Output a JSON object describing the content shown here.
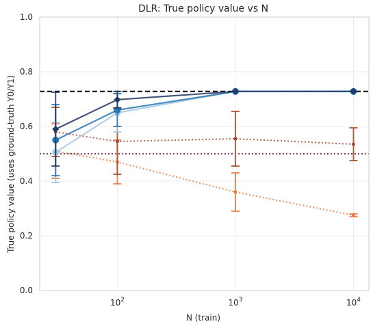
{
  "chart_data": {
    "type": "line",
    "title": "DLR: True policy value vs N",
    "xlabel": "N (train)",
    "ylabel": "True policy value (uses ground-truth Y0/Y1)",
    "xscale": "log",
    "xlim": [
      22,
      13500
    ],
    "ylim": [
      0.0,
      1.0
    ],
    "x": [
      30,
      100,
      1000,
      10000
    ],
    "xticks": [
      100,
      1000,
      10000
    ],
    "xtick_labels": [
      {
        "base": "10",
        "exp": "2"
      },
      {
        "base": "10",
        "exp": "3"
      },
      {
        "base": "10",
        "exp": "4"
      }
    ],
    "yticks": [
      0.0,
      0.2,
      0.4,
      0.6,
      0.8,
      1.0
    ],
    "ytick_labels": [
      "0.0",
      "0.2",
      "0.4",
      "0.6",
      "0.8",
      "1.0"
    ],
    "grid": true,
    "reference_lines": [
      {
        "y": 0.728,
        "style": "dashed",
        "color": "#000000"
      },
      {
        "y": 0.5,
        "style": "dotted",
        "color": "#8b3a62"
      }
    ],
    "series": [
      {
        "values": [
          0.59,
          0.698,
          0.728,
          0.728
        ],
        "err": [
          0.135,
          0.03,
          0.0,
          0.0
        ],
        "color": "#1f3a63",
        "style": "solid",
        "marker": "diamond"
      },
      {
        "values": [
          0.55,
          0.66,
          0.728,
          0.728
        ],
        "err": [
          0.13,
          0.06,
          0.0,
          0.0
        ],
        "color": "#2878b5",
        "style": "solid",
        "marker": "circle"
      },
      {
        "values": [
          0.505,
          0.65,
          0.728,
          0.728
        ],
        "err": [
          0.11,
          0.07,
          0.0,
          0.0
        ],
        "color": "#a7c7e0",
        "style": "solid",
        "marker": "circle"
      },
      {
        "values": [
          0.58,
          0.545,
          0.555,
          0.535
        ],
        "err": [
          0.09,
          0.12,
          0.1,
          0.06
        ],
        "color": "#a9462b",
        "style": "dotted",
        "marker": "point"
      },
      {
        "values": [
          0.51,
          0.47,
          0.36,
          0.275
        ],
        "err": [
          0.1,
          0.08,
          0.07,
          0.005
        ],
        "color": "#e87a3c",
        "style": "dotted",
        "marker": "point"
      }
    ]
  }
}
